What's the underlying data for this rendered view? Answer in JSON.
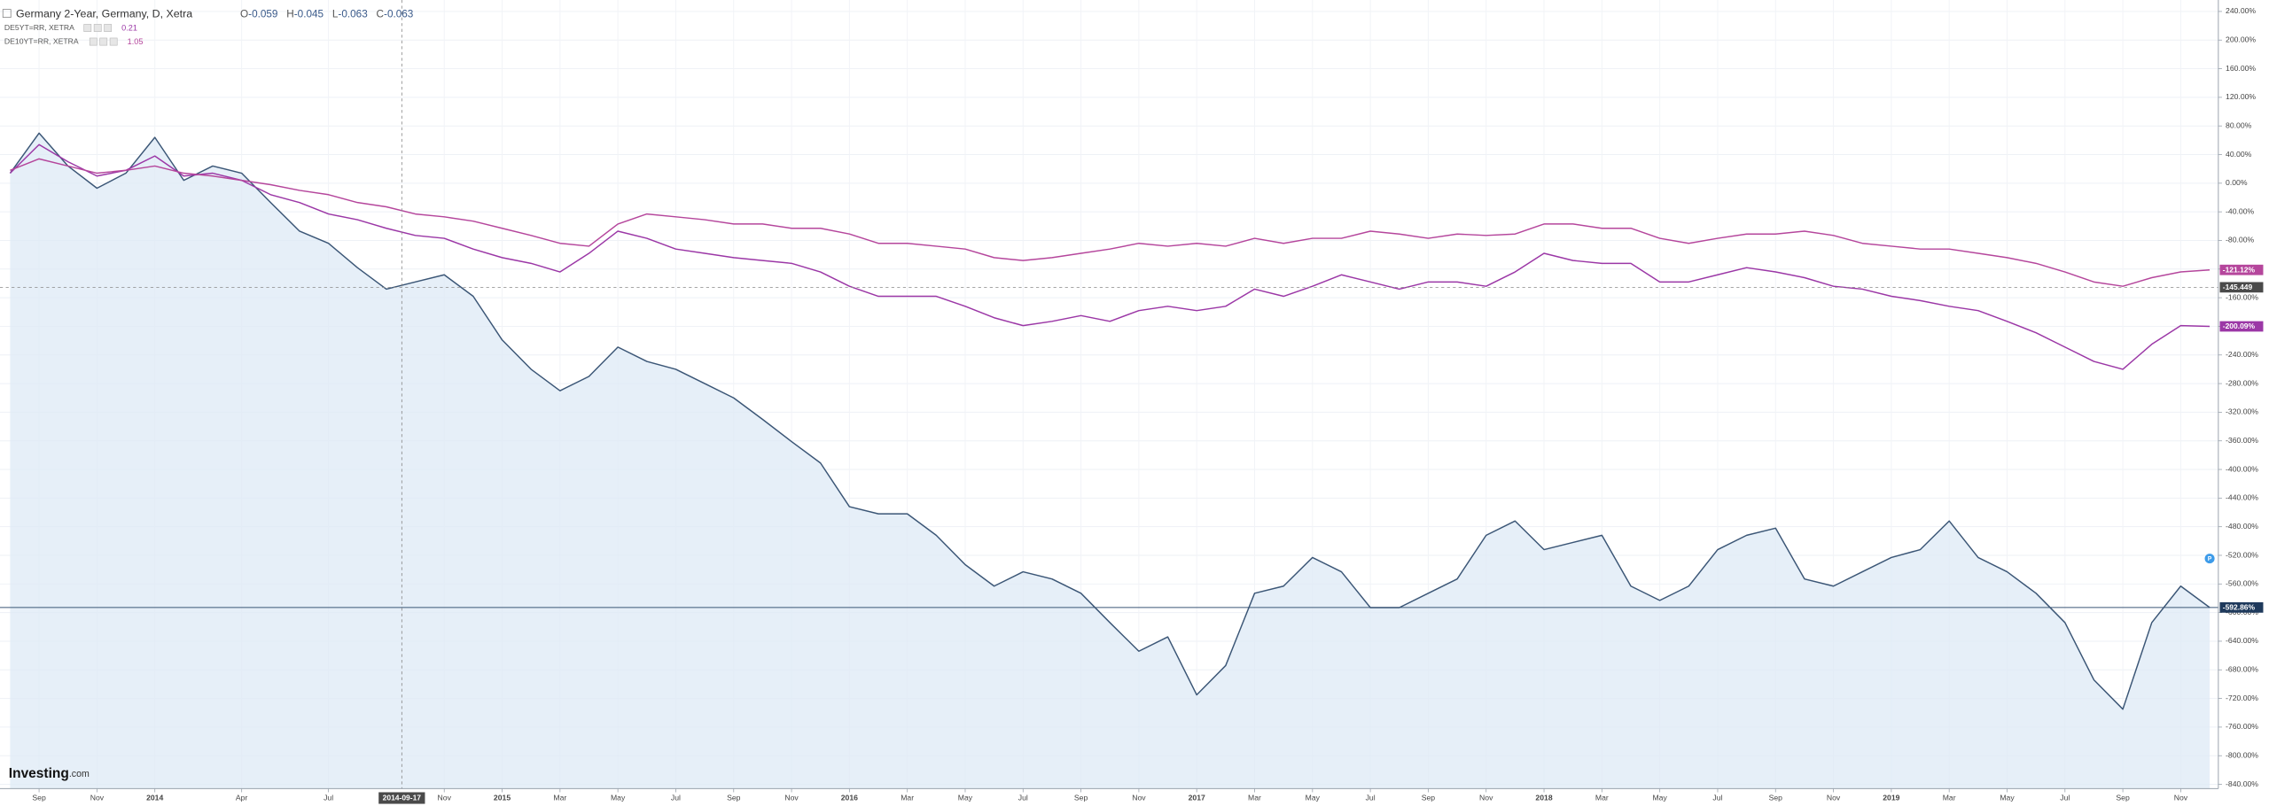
{
  "chart_data": {
    "type": "line",
    "x": [
      "2013-08",
      "2013-09",
      "2013-10",
      "2013-11",
      "2013-12",
      "2014-01",
      "2014-02",
      "2014-03",
      "2014-04",
      "2014-05",
      "2014-06",
      "2014-07",
      "2014-08",
      "2014-09",
      "2014-10",
      "2014-11",
      "2014-12",
      "2015-01",
      "2015-02",
      "2015-03",
      "2015-04",
      "2015-05",
      "2015-06",
      "2015-07",
      "2015-08",
      "2015-09",
      "2015-10",
      "2015-11",
      "2015-12",
      "2016-01",
      "2016-02",
      "2016-03",
      "2016-04",
      "2016-05",
      "2016-06",
      "2016-07",
      "2016-08",
      "2016-09",
      "2016-10",
      "2016-11",
      "2016-12",
      "2017-01",
      "2017-02",
      "2017-03",
      "2017-04",
      "2017-05",
      "2017-06",
      "2017-07",
      "2017-08",
      "2017-09",
      "2017-10",
      "2017-11",
      "2017-12",
      "2018-01",
      "2018-02",
      "2018-03",
      "2018-04",
      "2018-05",
      "2018-06",
      "2018-07",
      "2018-08",
      "2018-09",
      "2018-10",
      "2018-11",
      "2018-12",
      "2019-01",
      "2019-02",
      "2019-03",
      "2019-04",
      "2019-05",
      "2019-06",
      "2019-07",
      "2019-08",
      "2019-09",
      "2019-10",
      "2019-11",
      "2019-12"
    ],
    "series": [
      {
        "name": "Germany 2-Year, Germany, D, Xetra",
        "color": "#3b5676",
        "fill": "#dde9f6",
        "values": [
          14,
          70,
          24,
          -7,
          14,
          64,
          4,
          24,
          14,
          -27,
          -67,
          -84,
          -118,
          -148,
          -138,
          -128,
          -158,
          -219,
          -260,
          -290,
          -270,
          -229,
          -249,
          -260,
          -280,
          -300,
          -330,
          -361,
          -391,
          -452,
          -462,
          -462,
          -492,
          -533,
          -563,
          -543,
          -553,
          -573,
          -614,
          -654,
          -634,
          -715,
          -674,
          -573,
          -563,
          -523,
          -543,
          -593,
          -593,
          -573,
          -553,
          -492,
          -472,
          -512,
          -502,
          -492,
          -563,
          -583,
          -563,
          -512,
          -492,
          -482,
          -553,
          -563,
          -543,
          -523,
          -512,
          -472,
          -523,
          -543,
          -573,
          -614,
          -694,
          -735,
          -614,
          -563,
          -592.86
        ],
        "value_labels": [
          null,
          null,
          null,
          null,
          null,
          null,
          null,
          null,
          null,
          null,
          null,
          null,
          null,
          null,
          null,
          null,
          null,
          null,
          null,
          null,
          null,
          null,
          null,
          null,
          null,
          null,
          null,
          null,
          null,
          null,
          null,
          null,
          null,
          null,
          null,
          null,
          null,
          null,
          null,
          null,
          null,
          null,
          null,
          null,
          null,
          null,
          null,
          null,
          null,
          null,
          null,
          null,
          null,
          null,
          null,
          null,
          null,
          null,
          null,
          null,
          null,
          null,
          null,
          null,
          null,
          null,
          null,
          null,
          null,
          null,
          null,
          null,
          null,
          null,
          null,
          null,
          "-592.86%"
        ]
      },
      {
        "name": "DE5YT=RR, XETRA",
        "color": "#9b37a6",
        "legend_value": 0.21,
        "values": [
          14,
          54,
          30,
          10,
          18,
          38,
          10,
          14,
          4,
          -16,
          -27,
          -43,
          -51,
          -63,
          -73,
          -77,
          -92,
          -104,
          -112,
          -124,
          -98,
          -67,
          -77,
          -92,
          -98,
          -104,
          -108,
          -112,
          -124,
          -144,
          -158,
          -158,
          -158,
          -172,
          -188,
          -199,
          -193,
          -185,
          -193,
          -178,
          -172,
          -178,
          -172,
          -148,
          -158,
          -144,
          -128,
          -138,
          -148,
          -138,
          -138,
          -144,
          -124,
          -98,
          -108,
          -112,
          -112,
          -138,
          -138,
          -128,
          -118,
          -124,
          -132,
          -144,
          -148,
          -158,
          -164,
          -172,
          -178,
          -193,
          -209,
          -229,
          -249,
          -260,
          -225,
          -199,
          -200.09
        ],
        "value_labels": [
          null,
          null,
          null,
          null,
          null,
          null,
          null,
          null,
          null,
          null,
          null,
          null,
          null,
          null,
          null,
          null,
          null,
          null,
          null,
          null,
          null,
          null,
          null,
          null,
          null,
          null,
          null,
          null,
          null,
          null,
          null,
          null,
          null,
          null,
          null,
          null,
          null,
          null,
          null,
          null,
          null,
          null,
          null,
          null,
          null,
          null,
          null,
          null,
          null,
          null,
          null,
          null,
          null,
          null,
          null,
          null,
          null,
          null,
          null,
          null,
          null,
          null,
          null,
          null,
          null,
          null,
          null,
          null,
          null,
          null,
          null,
          null,
          null,
          null,
          null,
          null,
          "-200.09%"
        ]
      },
      {
        "name": "DE10YT=RR, XETRA",
        "color": "#b5469c",
        "legend_value": 1.05,
        "values": [
          18,
          34,
          24,
          14,
          18,
          24,
          14,
          10,
          4,
          -2,
          -10,
          -16,
          -27,
          -33,
          -43,
          -47,
          -53,
          -63,
          -73,
          -84,
          -88,
          -57,
          -43,
          -47,
          -51,
          -57,
          -57,
          -63,
          -63,
          -71,
          -84,
          -84,
          -88,
          -92,
          -104,
          -108,
          -104,
          -98,
          -92,
          -84,
          -88,
          -84,
          -88,
          -77,
          -84,
          -77,
          -77,
          -67,
          -71,
          -77,
          -71,
          -73,
          -71,
          -57,
          -57,
          -63,
          -63,
          -77,
          -84,
          -77,
          -71,
          -71,
          -67,
          -73,
          -84,
          -88,
          -92,
          -92,
          -98,
          -104,
          -112,
          -124,
          -138,
          -144,
          -132,
          -124,
          -121.12
        ],
        "value_labels": [
          null,
          null,
          null,
          null,
          null,
          null,
          null,
          null,
          null,
          null,
          null,
          null,
          null,
          null,
          null,
          null,
          null,
          null,
          null,
          null,
          null,
          null,
          null,
          null,
          null,
          null,
          null,
          null,
          null,
          null,
          null,
          null,
          null,
          null,
          null,
          null,
          null,
          null,
          null,
          null,
          null,
          null,
          null,
          null,
          null,
          null,
          null,
          null,
          null,
          null,
          null,
          null,
          null,
          null,
          null,
          null,
          null,
          null,
          null,
          null,
          null,
          null,
          null,
          null,
          null,
          null,
          null,
          null,
          null,
          null,
          null,
          null,
          null,
          null,
          null,
          null,
          "-121.12%"
        ]
      }
    ],
    "ohlc": [
      {
        "label": "O",
        "value": -0.059
      },
      {
        "label": "H",
        "value": -0.045
      },
      {
        "label": "L",
        "value": -0.063
      },
      {
        "label": "C",
        "value": -0.063
      }
    ],
    "crosshair": {
      "x": "2014-09-17",
      "y": -145.449
    },
    "logo": [
      "Investing",
      ".com"
    ],
    "xlim": [
      "2013-08",
      "2019-12"
    ],
    "xticks": [
      {
        "value": "2013-09",
        "label": "Sep"
      },
      {
        "value": "2013-11",
        "label": "Nov"
      },
      {
        "value": "2014-01",
        "label": "2014"
      },
      {
        "value": "2014-04",
        "label": "Apr"
      },
      {
        "value": "2014-07",
        "label": "Jul"
      },
      {
        "value": "2014-11",
        "label": "Nov"
      },
      {
        "value": "2015-01",
        "label": "2015"
      },
      {
        "value": "2015-03",
        "label": "Mar"
      },
      {
        "value": "2015-05",
        "label": "May"
      },
      {
        "value": "2015-07",
        "label": "Jul"
      },
      {
        "value": "2015-09",
        "label": "Sep"
      },
      {
        "value": "2015-11",
        "label": "Nov"
      },
      {
        "value": "2016-01",
        "label": "2016"
      },
      {
        "value": "2016-03",
        "label": "Mar"
      },
      {
        "value": "2016-05",
        "label": "May"
      },
      {
        "value": "2016-07",
        "label": "Jul"
      },
      {
        "value": "2016-09",
        "label": "Sep"
      },
      {
        "value": "2016-11",
        "label": "Nov"
      },
      {
        "value": "2017-01",
        "label": "2017"
      },
      {
        "value": "2017-03",
        "label": "Mar"
      },
      {
        "value": "2017-05",
        "label": "May"
      },
      {
        "value": "2017-07",
        "label": "Jul"
      },
      {
        "value": "2017-09",
        "label": "Sep"
      },
      {
        "value": "2017-11",
        "label": "Nov"
      },
      {
        "value": "2018-01",
        "label": "2018"
      },
      {
        "value": "2018-03",
        "label": "Mar"
      },
      {
        "value": "2018-05",
        "label": "May"
      },
      {
        "value": "2018-07",
        "label": "Jul"
      },
      {
        "value": "2018-09",
        "label": "Sep"
      },
      {
        "value": "2018-11",
        "label": "Nov"
      },
      {
        "value": "2019-01",
        "label": "2019"
      },
      {
        "value": "2019-03",
        "label": "Mar"
      },
      {
        "value": "2019-05",
        "label": "May"
      },
      {
        "value": "2019-07",
        "label": "Jul"
      },
      {
        "value": "2019-09",
        "label": "Sep"
      },
      {
        "value": "2019-11",
        "label": "Nov"
      }
    ],
    "ylim": [
      -846,
      256
    ],
    "yticks": [
      {
        "value": 240,
        "label": "240.00%"
      },
      {
        "value": 200,
        "label": "200.00%"
      },
      {
        "value": 160,
        "label": "160.00%"
      },
      {
        "value": 120,
        "label": "120.00%"
      },
      {
        "value": 80,
        "label": "80.00%"
      },
      {
        "value": 40,
        "label": "40.00%"
      },
      {
        "value": 0,
        "label": "0.00%"
      },
      {
        "value": -40,
        "label": "-40.00%"
      },
      {
        "value": -80,
        "label": "-80.00%"
      },
      {
        "value": -120,
        "label": "-120.00%"
      },
      {
        "value": -160,
        "label": "-160.00%"
      },
      {
        "value": -200,
        "label": "-200.00%"
      },
      {
        "value": -240,
        "label": "-240.00%"
      },
      {
        "value": -280,
        "label": "-280.00%"
      },
      {
        "value": -320,
        "label": "-320.00%"
      },
      {
        "value": -360,
        "label": "-360.00%"
      },
      {
        "value": -400,
        "label": "-400.00%"
      },
      {
        "value": -440,
        "label": "-440.00%"
      },
      {
        "value": -480,
        "label": "-480.00%"
      },
      {
        "value": -520,
        "label": "-520.00%"
      },
      {
        "value": -560,
        "label": "-560.00%"
      },
      {
        "value": -600,
        "label": "-600.00%"
      },
      {
        "value": -640,
        "label": "-640.00%"
      },
      {
        "value": -680,
        "label": "-680.00%"
      },
      {
        "value": -720,
        "label": "-720.00%"
      },
      {
        "value": -760,
        "label": "-760.00%"
      },
      {
        "value": -800,
        "label": "-800.00%"
      },
      {
        "value": -840,
        "label": "-840.00%"
      }
    ],
    "grid": true
  }
}
